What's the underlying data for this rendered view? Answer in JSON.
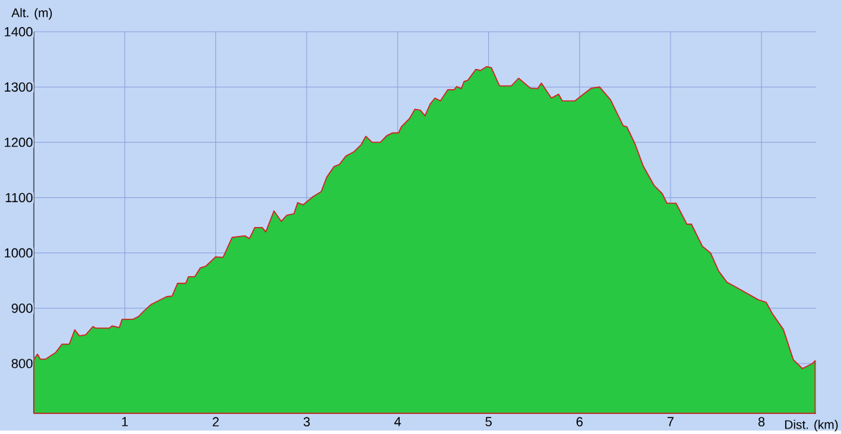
{
  "chart_data": {
    "type": "area",
    "xlabel": "Dist. (km)",
    "ylabel": "Alt. (m)",
    "x": [
      0,
      0.04,
      0.07,
      0.13,
      0.24,
      0.31,
      0.39,
      0.45,
      0.5,
      0.57,
      0.65,
      0.68,
      0.83,
      0.86,
      0.94,
      0.97,
      1.09,
      1.15,
      1.21,
      1.29,
      1.46,
      1.52,
      1.58,
      1.67,
      1.7,
      1.77,
      1.83,
      1.89,
      2.0,
      2.08,
      2.18,
      2.32,
      2.37,
      2.43,
      2.51,
      2.55,
      2.64,
      2.72,
      2.78,
      2.86,
      2.9,
      2.96,
      3.07,
      3.16,
      3.22,
      3.3,
      3.36,
      3.43,
      3.52,
      3.6,
      3.65,
      3.72,
      3.81,
      3.88,
      3.94,
      4.01,
      4.04,
      4.13,
      4.19,
      4.25,
      4.3,
      4.36,
      4.41,
      4.47,
      4.55,
      4.62,
      4.65,
      4.7,
      4.73,
      4.77,
      4.86,
      4.91,
      4.98,
      5.03,
      5.12,
      5.25,
      5.33,
      5.46,
      5.54,
      5.58,
      5.69,
      5.77,
      5.81,
      5.95,
      6.04,
      6.13,
      6.22,
      6.34,
      6.48,
      6.52,
      6.61,
      6.7,
      6.82,
      6.91,
      6.96,
      7.06,
      7.18,
      7.23,
      7.35,
      7.44,
      7.53,
      7.62,
      7.7,
      7.97,
      8.05,
      8.12,
      8.24,
      8.35,
      8.45,
      8.5,
      8.56,
      8.59
    ],
    "series": [
      {
        "color": "#28c842",
        "values": [
          807,
          817,
          808,
          808,
          820,
          835,
          835,
          861,
          850,
          852,
          867,
          864,
          864,
          868,
          865,
          880,
          880,
          885,
          895,
          907,
          921,
          922,
          945,
          945,
          957,
          957,
          973,
          976,
          993,
          992,
          1028,
          1031,
          1026,
          1046,
          1046,
          1038,
          1076,
          1057,
          1068,
          1071,
          1091,
          1087,
          1102,
          1111,
          1137,
          1156,
          1160,
          1175,
          1183,
          1196,
          1211,
          1200,
          1200,
          1212,
          1217,
          1217,
          1228,
          1243,
          1260,
          1258,
          1248,
          1270,
          1280,
          1275,
          1295,
          1295,
          1301,
          1297,
          1310,
          1312,
          1332,
          1330,
          1337,
          1335,
          1302,
          1302,
          1316,
          1298,
          1297,
          1307,
          1280,
          1287,
          1275,
          1275,
          1287,
          1298,
          1300,
          1277,
          1230,
          1228,
          1197,
          1157,
          1122,
          1107,
          1090,
          1090,
          1052,
          1052,
          1012,
          1000,
          967,
          947,
          940,
          915,
          911,
          890,
          862,
          807,
          791,
          795,
          800,
          805
        ]
      }
    ],
    "xlim": [
      0,
      8.6
    ],
    "ylim": [
      710,
      1400
    ],
    "xticks": [
      1,
      2,
      3,
      4,
      5,
      6,
      7,
      8
    ],
    "yticks": [
      800,
      900,
      1000,
      1100,
      1200,
      1300,
      1400
    ],
    "grid": true
  }
}
